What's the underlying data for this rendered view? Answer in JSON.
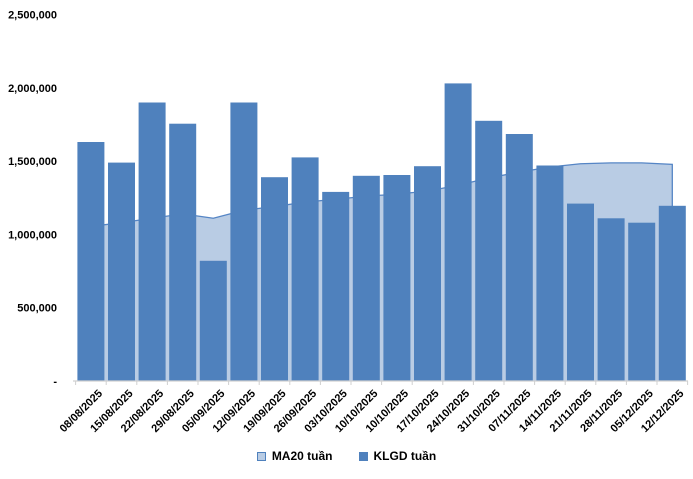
{
  "chart_data": {
    "type": "combo",
    "title": "",
    "categories": [
      "08/08/2025",
      "15/08/2025",
      "22/08/2025",
      "29/08/2025",
      "05/09/2025",
      "12/09/2025",
      "19/09/2025",
      "26/09/2025",
      "03/10/2025",
      "10/10/2025",
      "10/10/2025",
      "17/10/2025",
      "24/10/2025",
      "31/10/2025",
      "07/11/2025",
      "14/11/2025",
      "21/11/2025",
      "28/11/2025",
      "05/12/2025",
      "12/12/2025"
    ],
    "series": [
      {
        "name": "MA20 tuần",
        "type": "area",
        "values": [
          1055000,
          1080000,
          1110000,
          1140000,
          1110000,
          1165000,
          1190000,
          1220000,
          1240000,
          1260000,
          1275000,
          1295000,
          1335000,
          1385000,
          1425000,
          1460000,
          1482000,
          1488000,
          1488000,
          1478000
        ]
      },
      {
        "name": "KLGD tuần",
        "type": "bar",
        "values": [
          1630000,
          1490000,
          1900000,
          1755000,
          820000,
          1900000,
          1390000,
          1525000,
          1290000,
          1400000,
          1405000,
          1465000,
          2030000,
          1775000,
          1685000,
          1470000,
          1210000,
          1110000,
          1080000,
          1195000
        ]
      }
    ],
    "y_axis": {
      "min": 0,
      "max": 2500000,
      "tick_interval": 500000,
      "ticks": [
        {
          "value": 2500000,
          "label": "2,500,000"
        },
        {
          "value": 2000000,
          "label": "2,000,000"
        },
        {
          "value": 1500000,
          "label": "1,500,000"
        },
        {
          "value": 1000000,
          "label": "1,000,000"
        },
        {
          "value": 500000,
          "label": "500,000"
        },
        {
          "value": 0,
          "label": "-"
        }
      ]
    },
    "xlabel": "",
    "ylabel": "",
    "grid": false,
    "legend_position": "bottom"
  },
  "legend": {
    "items": [
      {
        "label": "MA20 tuần"
      },
      {
        "label": "KLGD tuần"
      }
    ]
  },
  "colors": {
    "bar": "#4f81bd",
    "area_fill": "#b9cce4",
    "area_line": "#5585c5",
    "axis": "#d0d0d0",
    "text": "#000000"
  }
}
